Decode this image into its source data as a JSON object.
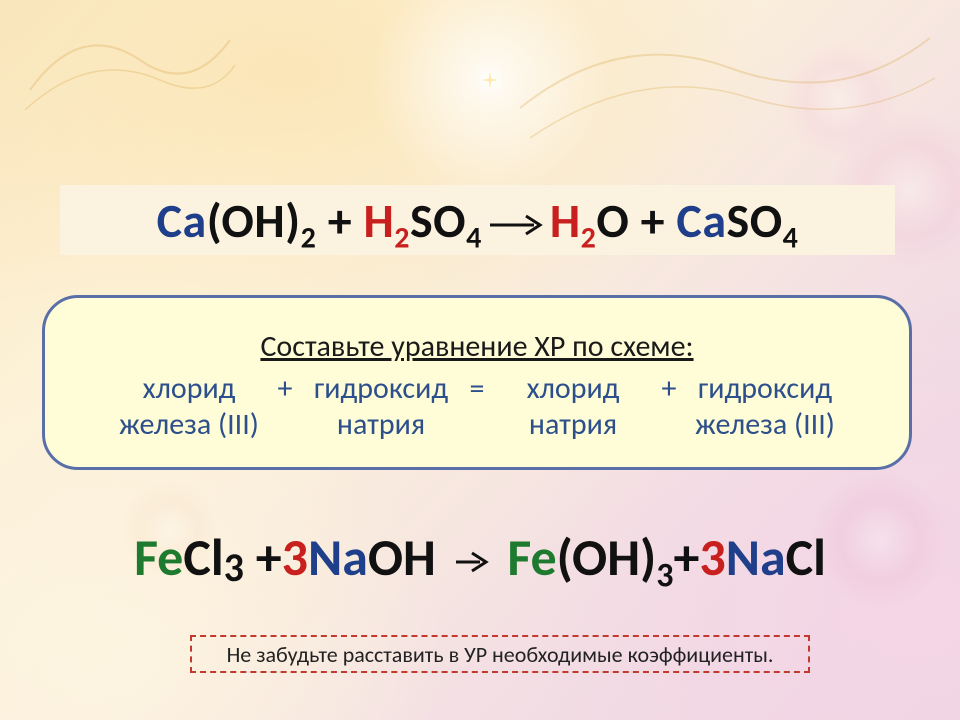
{
  "colors": {
    "blue": "#1f3f8a",
    "black": "#111111",
    "red": "#c8201e",
    "green": "#1e7a2e",
    "panel_bg": "#fefdd7",
    "panel_border": "#5a6fa8",
    "eq_box_bg": "#fbf3e0",
    "note_border": "#c23a2d",
    "task_text": "#2d4f8b"
  },
  "equation1": {
    "parts": [
      {
        "text": "Ca",
        "color": "blue"
      },
      {
        "text": "(OH)",
        "color": "black"
      },
      {
        "text": "2",
        "color": "black",
        "sub": true
      },
      {
        "text": " + ",
        "color": "black"
      },
      {
        "text": "H",
        "color": "red"
      },
      {
        "text": "2",
        "color": "red",
        "sub": true
      },
      {
        "text": "SO",
        "color": "black"
      },
      {
        "text": "4",
        "color": "black",
        "sub": true
      },
      {
        "arrow": true
      },
      {
        "text": "H",
        "color": "red"
      },
      {
        "text": "2",
        "color": "red",
        "sub": true
      },
      {
        "text": "O",
        "color": "black"
      },
      {
        "text": " + ",
        "color": "black"
      },
      {
        "text": "Ca",
        "color": "blue"
      },
      {
        "text": "SO",
        "color": "black"
      },
      {
        "text": "4",
        "color": "black",
        "sub": true
      }
    ]
  },
  "task": {
    "title": "Составьте уравнение ХР по схеме:",
    "cells": [
      {
        "top": "хлорид",
        "bottom": "железа (III)"
      },
      {
        "op": "+"
      },
      {
        "top": "гидроксид",
        "bottom": "натрия"
      },
      {
        "op": "="
      },
      {
        "top": "хлорид",
        "bottom": "натрия"
      },
      {
        "op": "+"
      },
      {
        "top": "гидроксид",
        "bottom": "железа (III)"
      }
    ]
  },
  "equation2": {
    "parts": [
      {
        "text": "Fe",
        "color": "green"
      },
      {
        "text": "Cl",
        "color": "black"
      },
      {
        "text": "3",
        "color": "black",
        "sub": true,
        "alt": true
      },
      {
        "text": " +",
        "color": "black"
      },
      {
        "text": "3",
        "color": "red"
      },
      {
        "text": "Na",
        "color": "blue"
      },
      {
        "text": "OH ",
        "color": "black"
      },
      {
        "arrow": true,
        "small": true
      },
      {
        "text": " Fe",
        "color": "green"
      },
      {
        "text": "(OH)",
        "color": "black"
      },
      {
        "text": "3",
        "color": "black",
        "sub": true
      },
      {
        "text": "+",
        "color": "black"
      },
      {
        "text": "3",
        "color": "red"
      },
      {
        "text": "Na",
        "color": "blue"
      },
      {
        "text": "Cl",
        "color": "black"
      }
    ]
  },
  "note": "Не забудьте расставить в УР необходимые коэффициенты."
}
